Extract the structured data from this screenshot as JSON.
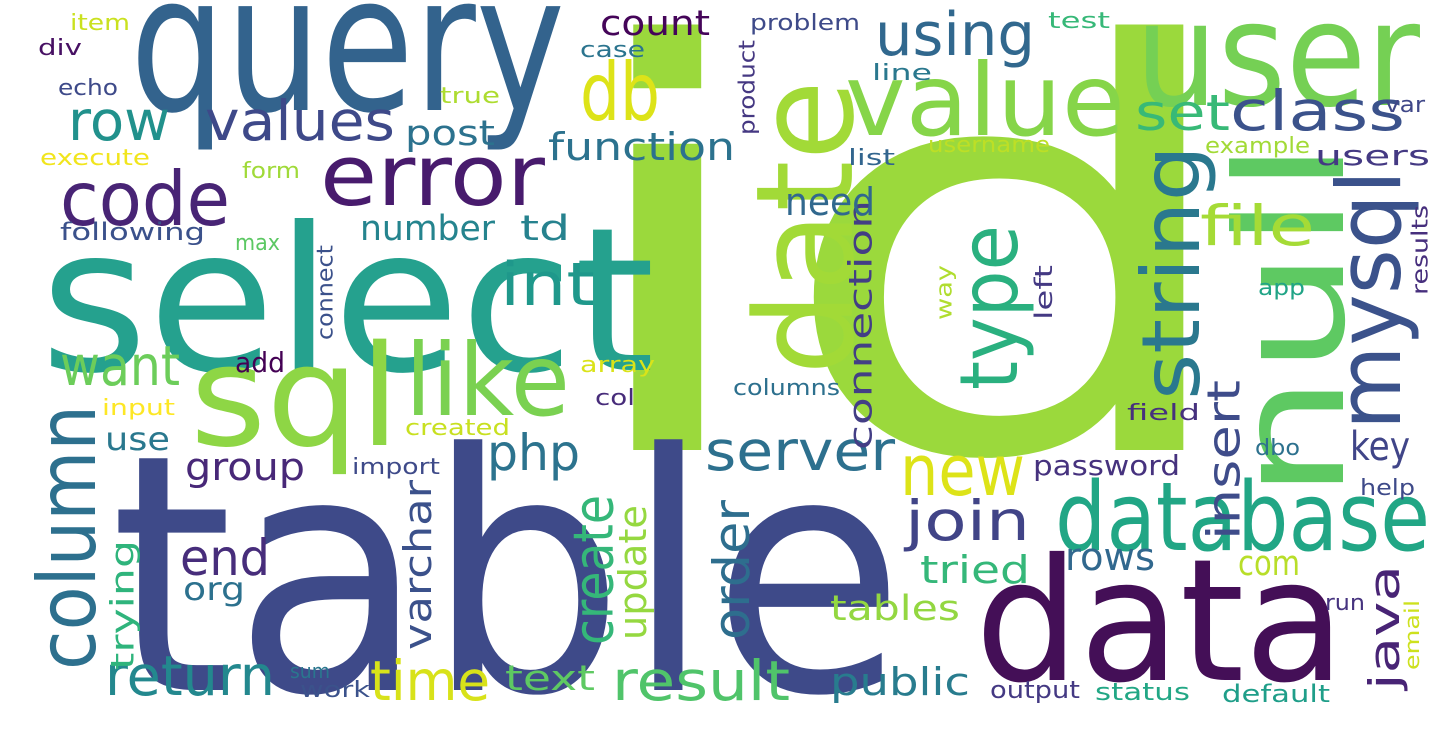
{
  "words": [
    {
      "text": "id",
      "color": "#9bd93c"
    },
    {
      "text": "table",
      "color": "#3e4a89"
    },
    {
      "text": "query",
      "color": "#33638d"
    },
    {
      "text": "select",
      "color": "#25a18e"
    },
    {
      "text": "data",
      "color": "#440f57"
    },
    {
      "text": "user",
      "color": "#75d054"
    },
    {
      "text": "date",
      "color": "#a2da37"
    },
    {
      "text": "null",
      "color": "#5ec962"
    },
    {
      "text": "value",
      "color": "#86d549"
    },
    {
      "text": "sql",
      "color": "#8ed645"
    },
    {
      "text": "error",
      "color": "#481b6d"
    },
    {
      "text": "code",
      "color": "#482475"
    },
    {
      "text": "column",
      "color": "#2d708e"
    },
    {
      "text": "like",
      "color": "#7ad151"
    },
    {
      "text": "database",
      "color": "#21a685"
    },
    {
      "text": "mysql",
      "color": "#3b528b"
    },
    {
      "text": "string",
      "color": "#2a788e"
    },
    {
      "text": "type",
      "color": "#2ab07f"
    },
    {
      "text": "db",
      "color": "#dde318"
    },
    {
      "text": "using",
      "color": "#31688e"
    },
    {
      "text": "values",
      "color": "#3e4989"
    },
    {
      "text": "row",
      "color": "#21918c"
    },
    {
      "text": "set",
      "color": "#38b977"
    },
    {
      "text": "class",
      "color": "#3b528b"
    },
    {
      "text": "int",
      "color": "#1f988b"
    },
    {
      "text": "file",
      "color": "#a5db36"
    },
    {
      "text": "new",
      "color": "#dde318"
    },
    {
      "text": "server",
      "color": "#2d708e"
    },
    {
      "text": "join",
      "color": "#414487"
    },
    {
      "text": "php",
      "color": "#2c738e"
    },
    {
      "text": "want",
      "color": "#6ccd5a"
    },
    {
      "text": "end",
      "color": "#472d7b"
    },
    {
      "text": "return",
      "color": "#23888e"
    },
    {
      "text": "time",
      "color": "#d8e219"
    },
    {
      "text": "result",
      "color": "#50c46a"
    },
    {
      "text": "create",
      "color": "#35b779"
    },
    {
      "text": "order",
      "color": "#2e6e8e"
    },
    {
      "text": "update",
      "color": "#95d840"
    },
    {
      "text": "varchar",
      "color": "#3b518b"
    },
    {
      "text": "trying",
      "color": "#2fb47c"
    },
    {
      "text": "java",
      "color": "#482475"
    },
    {
      "text": "insert",
      "color": "#3e4c8a"
    },
    {
      "text": "key",
      "color": "#404588"
    },
    {
      "text": "connection",
      "color": "#433e85"
    },
    {
      "text": "count",
      "color": "#450559"
    },
    {
      "text": "post",
      "color": "#2c728e"
    },
    {
      "text": "function",
      "color": "#2c728e"
    },
    {
      "text": "need",
      "color": "#31688e"
    },
    {
      "text": "number",
      "color": "#25848e"
    },
    {
      "text": "td",
      "color": "#26828e"
    },
    {
      "text": "group",
      "color": "#482878"
    },
    {
      "text": "use",
      "color": "#2a788e"
    },
    {
      "text": "add",
      "color": "#440154"
    },
    {
      "text": "org",
      "color": "#2c718e"
    },
    {
      "text": "tried",
      "color": "#35b779"
    },
    {
      "text": "rows",
      "color": "#31688e"
    },
    {
      "text": "com",
      "color": "#b8de29"
    },
    {
      "text": "tables",
      "color": "#93d741"
    },
    {
      "text": "text",
      "color": "#5ec962"
    },
    {
      "text": "public",
      "color": "#287c8e"
    },
    {
      "text": "password",
      "color": "#46327e"
    },
    {
      "text": "output",
      "color": "#443983"
    },
    {
      "text": "status",
      "color": "#22a785"
    },
    {
      "text": "default",
      "color": "#1f9e89"
    },
    {
      "text": "sum",
      "color": "#2a768e"
    },
    {
      "text": "work",
      "color": "#3b528b"
    },
    {
      "text": "columns",
      "color": "#2d708e"
    },
    {
      "text": "col",
      "color": "#472c7a"
    },
    {
      "text": "array",
      "color": "#dae319"
    },
    {
      "text": "created",
      "color": "#c8e020"
    },
    {
      "text": "import",
      "color": "#3e4a89"
    },
    {
      "text": "input",
      "color": "#fde725"
    },
    {
      "text": "connect",
      "color": "#3b518b"
    },
    {
      "text": "max",
      "color": "#5cc863"
    },
    {
      "text": "following",
      "color": "#3b518b"
    },
    {
      "text": "form",
      "color": "#a0da39"
    },
    {
      "text": "execute",
      "color": "#f1e51d"
    },
    {
      "text": "echo",
      "color": "#3e4a89"
    },
    {
      "text": "true",
      "color": "#addc30"
    },
    {
      "text": "div",
      "color": "#471063"
    },
    {
      "text": "item",
      "color": "#cae11f"
    },
    {
      "text": "case",
      "color": "#2b748e"
    },
    {
      "text": "problem",
      "color": "#3e4a89"
    },
    {
      "text": "product",
      "color": "#453882"
    },
    {
      "text": "test",
      "color": "#37b878"
    },
    {
      "text": "line",
      "color": "#2a788e"
    },
    {
      "text": "var",
      "color": "#3f4788"
    },
    {
      "text": "list",
      "color": "#32658e"
    },
    {
      "text": "username",
      "color": "#bddf26"
    },
    {
      "text": "example",
      "color": "#a2da37"
    },
    {
      "text": "users",
      "color": "#443983"
    },
    {
      "text": "results",
      "color": "#472f7d"
    },
    {
      "text": "app",
      "color": "#20a486"
    },
    {
      "text": "way",
      "color": "#b0dd2f"
    },
    {
      "text": "left",
      "color": "#443983"
    },
    {
      "text": "field",
      "color": "#46317e"
    },
    {
      "text": "dbo",
      "color": "#2d718e"
    },
    {
      "text": "help",
      "color": "#3e4a89"
    },
    {
      "text": "run",
      "color": "#46337f"
    },
    {
      "text": "email",
      "color": "#cde11d"
    }
  ]
}
